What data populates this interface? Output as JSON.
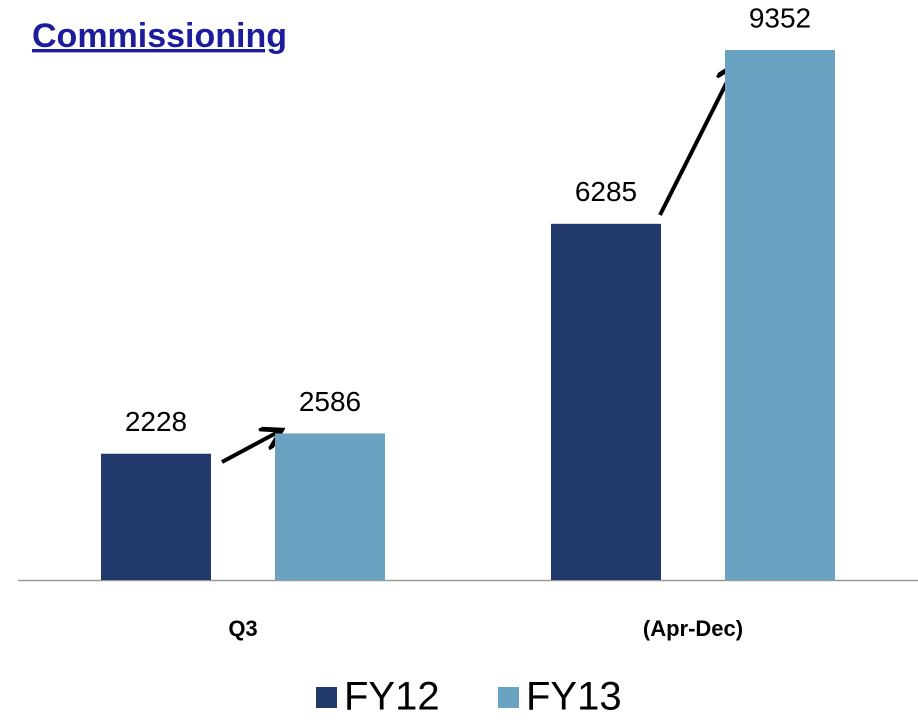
{
  "chart_data": {
    "type": "bar",
    "title": "Commissioning",
    "categories": [
      "Q3",
      "(Apr-Dec)"
    ],
    "series": [
      {
        "name": "FY12",
        "color": "#213a6b",
        "values": [
          2228,
          6285
        ]
      },
      {
        "name": "FY13",
        "color": "#6aa3c1",
        "values": [
          2586,
          9352
        ]
      }
    ],
    "ylim": [
      0,
      10000
    ]
  }
}
